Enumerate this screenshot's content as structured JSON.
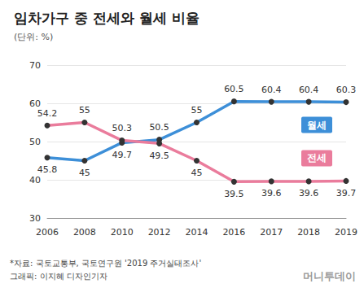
{
  "chart_data": {
    "type": "line",
    "title": "임차가구 중 전세와 월세 비율",
    "subtitle": "(단위: %)",
    "categories": [
      "2006",
      "2008",
      "2010",
      "2012",
      "2014",
      "2016",
      "2017",
      "2018",
      "2019"
    ],
    "series": [
      {
        "name": "월세",
        "color": "#3d8fd8",
        "values": [
          45.8,
          45,
          49.7,
          50.5,
          55,
          60.5,
          60.4,
          60.4,
          60.3
        ]
      },
      {
        "name": "전세",
        "color": "#ea7c9c",
        "values": [
          54.2,
          55,
          50.3,
          49.5,
          45,
          39.5,
          39.6,
          39.6,
          39.7
        ]
      }
    ],
    "ylim": [
      30,
      70
    ],
    "yticks": [
      30,
      40,
      50,
      60,
      70
    ],
    "grid": true,
    "data_labels": true,
    "marker": "circle",
    "annotations": [
      "*자료: 국토교통부, 국토연구원 '2019 주거실태조사'",
      "그래픽: 이지혜 디자인기자",
      "머니투데이"
    ]
  }
}
